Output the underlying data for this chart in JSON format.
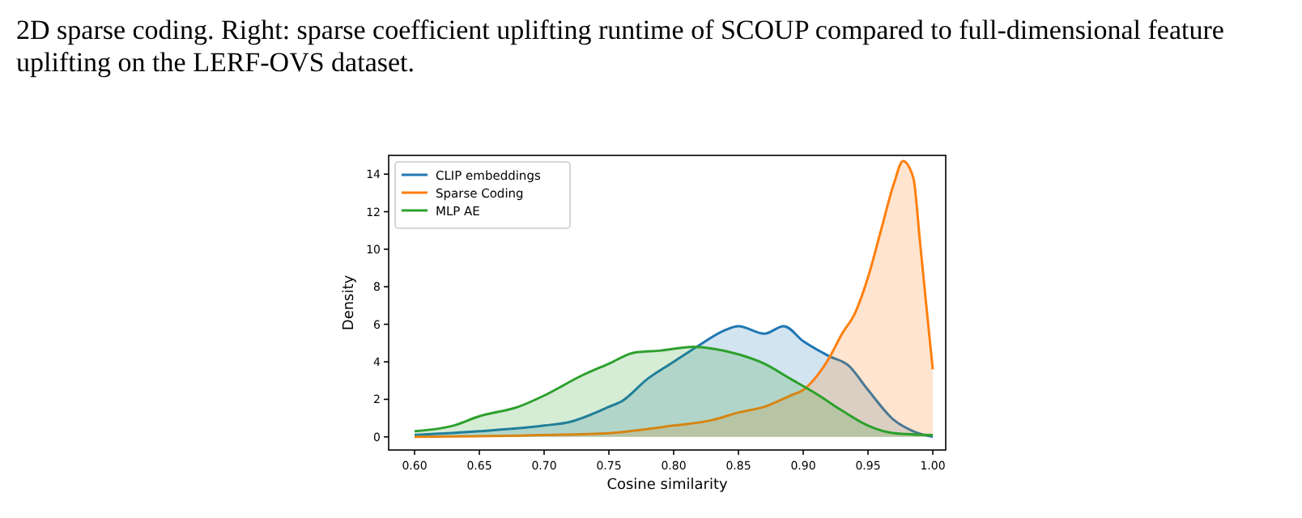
{
  "chart_data": {
    "type": "area",
    "xlabel": "Cosine similarity",
    "ylabel": "Density",
    "annotations": [
      "2D sparse coding. Right: sparse coefficient uplifting runtime of SCOUP compared to full-dimensional feature uplifting on the LERF-OVS dataset."
    ],
    "xlim": [
      0.58,
      1.01
    ],
    "ylim": [
      -0.7,
      15
    ],
    "xticks": [
      {
        "value": 0.6,
        "label": "0.60"
      },
      {
        "value": 0.65,
        "label": "0.65"
      },
      {
        "value": 0.7,
        "label": "0.70"
      },
      {
        "value": 0.75,
        "label": "0.75"
      },
      {
        "value": 0.8,
        "label": "0.80"
      },
      {
        "value": 0.85,
        "label": "0.85"
      },
      {
        "value": 0.9,
        "label": "0.90"
      },
      {
        "value": 0.95,
        "label": "0.95"
      },
      {
        "value": 1,
        "label": "1.00"
      }
    ],
    "yticks": [
      0,
      2,
      4,
      6,
      8,
      10,
      12,
      14
    ],
    "legend": "top left",
    "grid": false,
    "series": [
      {
        "name": "CLIP embeddings",
        "color": "#1f77b4",
        "x": [
          0.6,
          0.65,
          0.7,
          0.72,
          0.75,
          0.76,
          0.78,
          0.8,
          0.82,
          0.84,
          0.85,
          0.87,
          0.885,
          0.9,
          0.92,
          0.935,
          0.95,
          0.97,
          0.985,
          1.0
        ],
        "values": [
          0.1,
          0.3,
          0.6,
          0.8,
          1.6,
          1.9,
          3.1,
          4.0,
          4.9,
          5.7,
          5.9,
          5.5,
          5.9,
          5.1,
          4.3,
          3.8,
          2.5,
          0.9,
          0.3,
          0
        ]
      },
      {
        "name": "Sparse Coding",
        "color": "#ff7f0e",
        "x": [
          0.6,
          0.7,
          0.75,
          0.8,
          0.83,
          0.85,
          0.87,
          0.89,
          0.9,
          0.91,
          0.92,
          0.93,
          0.94,
          0.95,
          0.96,
          0.97,
          0.977,
          0.985,
          0.99,
          0.995,
          1.0
        ],
        "values": [
          0,
          0.1,
          0.2,
          0.6,
          0.9,
          1.3,
          1.6,
          2.2,
          2.5,
          3.2,
          4.2,
          5.5,
          6.6,
          8.5,
          11.0,
          13.5,
          14.7,
          13.8,
          10.5,
          7,
          3.6
        ]
      },
      {
        "name": "MLP AE",
        "color": "#2ca02c",
        "x": [
          0.6,
          0.63,
          0.65,
          0.68,
          0.7,
          0.73,
          0.75,
          0.77,
          0.79,
          0.815,
          0.83,
          0.85,
          0.87,
          0.89,
          0.91,
          0.93,
          0.95,
          0.97,
          1.0
        ],
        "values": [
          0.3,
          0.6,
          1.1,
          1.6,
          2.2,
          3.3,
          3.9,
          4.5,
          4.6,
          4.8,
          4.7,
          4.4,
          3.9,
          3.1,
          2.3,
          1.4,
          0.6,
          0.2,
          0.1
        ]
      }
    ]
  }
}
